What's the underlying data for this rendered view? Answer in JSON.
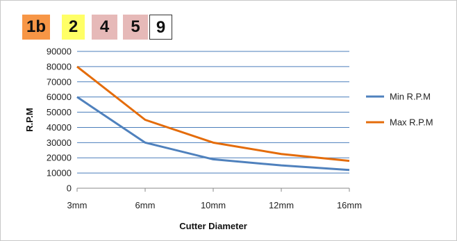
{
  "badges": [
    {
      "label": "1b",
      "color": "#f79646"
    },
    {
      "label": "2",
      "color": "#ffff66"
    },
    {
      "label": "4",
      "color": "#e6b9b8"
    },
    {
      "label": "5",
      "color": "#e6b9b8"
    },
    {
      "label": "9",
      "color": "#ffffff"
    }
  ],
  "chart_data": {
    "type": "line",
    "categories": [
      "3mm",
      "6mm",
      "10mm",
      "12mm",
      "16mm"
    ],
    "series": [
      {
        "name": "Min R.P.M",
        "values": [
          60000,
          30000,
          19000,
          15000,
          12000
        ],
        "color": "#4f81bd"
      },
      {
        "name": "Max R.P.M",
        "values": [
          80000,
          45000,
          30000,
          22500,
          18000
        ],
        "color": "#e46c0a"
      }
    ],
    "xlabel": "Cutter Diameter",
    "ylabel": "R.P.M",
    "ylim": [
      0,
      90000
    ],
    "yticks": [
      "0",
      "10000",
      "20000",
      "30000",
      "40000",
      "50000",
      "60000",
      "70000",
      "80000",
      "90000"
    ],
    "grid": true,
    "legend_position": "right"
  }
}
